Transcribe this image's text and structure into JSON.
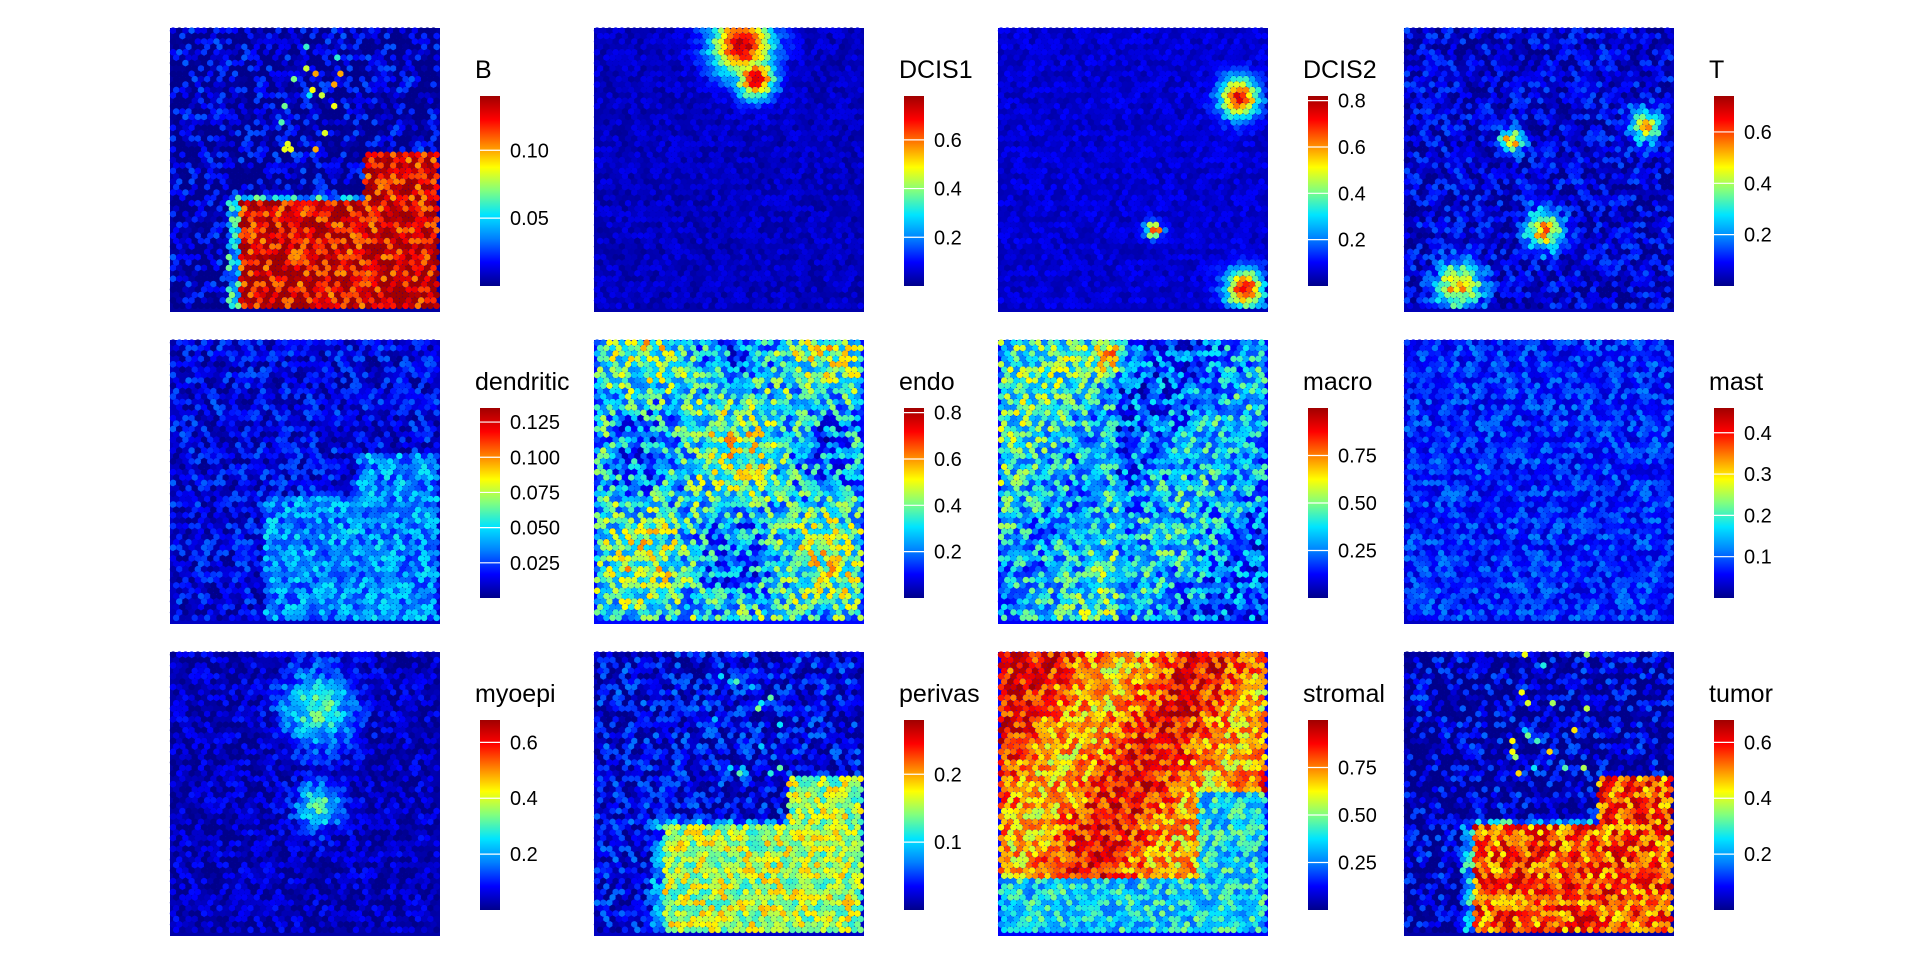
{
  "chart_data": {
    "type": "heatmap",
    "description_layout": "4x3 grid of spatial heatmaps",
    "colormap": [
      "#00008b",
      "#0000ff",
      "#0080ff",
      "#00e5ff",
      "#80ff80",
      "#ffff00",
      "#ff8000",
      "#ff0000",
      "#a00000"
    ],
    "panels": [
      {
        "title": "B",
        "scale_max": 0.14,
        "ticks": [
          0.05,
          0.1
        ],
        "tick_labels": [
          "0.05",
          "0.10"
        ],
        "pattern": "bottom-right",
        "base": 0.04,
        "peak": 0.9,
        "noise": 0.35
      },
      {
        "title": "DCIS1",
        "scale_max": 0.78,
        "ticks": [
          0.2,
          0.4,
          0.6
        ],
        "tick_labels": [
          "0.2",
          "0.4",
          "0.6"
        ],
        "pattern": "top-cluster",
        "base": 0.06,
        "peak": 0.95,
        "noise": 0.1
      },
      {
        "title": "DCIS2",
        "scale_max": 0.82,
        "ticks": [
          0.2,
          0.4,
          0.6,
          0.8
        ],
        "tick_labels": [
          "0.2",
          "0.4",
          "0.6",
          "0.8"
        ],
        "pattern": "corner-spots",
        "base": 0.08,
        "peak": 0.9,
        "noise": 0.1
      },
      {
        "title": "T",
        "scale_max": 0.74,
        "ticks": [
          0.2,
          0.4,
          0.6
        ],
        "tick_labels": [
          "0.2",
          "0.4",
          "0.6"
        ],
        "pattern": "scattered",
        "base": 0.08,
        "peak": 0.7,
        "noise": 0.25
      },
      {
        "title": "dendritic",
        "scale_max": 0.135,
        "ticks": [
          0.025,
          0.05,
          0.075,
          0.1,
          0.125
        ],
        "tick_labels": [
          "0.025",
          "0.050",
          "0.075",
          "0.100",
          "0.125"
        ],
        "pattern": "bottom-right-weak",
        "base": 0.1,
        "peak": 0.35,
        "noise": 0.25
      },
      {
        "title": "endo",
        "scale_max": 0.82,
        "ticks": [
          0.2,
          0.4,
          0.6,
          0.8
        ],
        "tick_labels": [
          "0.2",
          "0.4",
          "0.6",
          "0.8"
        ],
        "pattern": "diffuse",
        "base": 0.22,
        "peak": 0.55,
        "noise": 0.45
      },
      {
        "title": "macro",
        "scale_max": 1.0,
        "ticks": [
          0.25,
          0.5,
          0.75
        ],
        "tick_labels": [
          "0.25",
          "0.50",
          "0.75"
        ],
        "pattern": "diffuse-left",
        "base": 0.2,
        "peak": 0.45,
        "noise": 0.4
      },
      {
        "title": "mast",
        "scale_max": 0.46,
        "ticks": [
          0.1,
          0.2,
          0.3,
          0.4
        ],
        "tick_labels": [
          "0.1",
          "0.2",
          "0.3",
          "0.4"
        ],
        "pattern": "sparse",
        "base": 0.1,
        "peak": 0.4,
        "noise": 0.2
      },
      {
        "title": "myoepi",
        "scale_max": 0.68,
        "ticks": [
          0.2,
          0.4,
          0.6
        ],
        "tick_labels": [
          "0.2",
          "0.4",
          "0.6"
        ],
        "pattern": "top-middle",
        "base": 0.05,
        "peak": 0.55,
        "noise": 0.2
      },
      {
        "title": "perivas",
        "scale_max": 0.28,
        "ticks": [
          0.1,
          0.2
        ],
        "tick_labels": [
          "0.1",
          "0.2"
        ],
        "pattern": "bottom-right",
        "base": 0.1,
        "peak": 0.55,
        "noise": 0.3
      },
      {
        "title": "stromal",
        "scale_max": 1.0,
        "ticks": [
          0.25,
          0.5,
          0.75
        ],
        "tick_labels": [
          "0.25",
          "0.50",
          "0.75"
        ],
        "pattern": "stromal",
        "base": 0.2,
        "peak": 0.88,
        "noise": 0.3
      },
      {
        "title": "tumor",
        "scale_max": 0.68,
        "ticks": [
          0.2,
          0.4,
          0.6
        ],
        "tick_labels": [
          "0.2",
          "0.4",
          "0.6"
        ],
        "pattern": "bottom-right",
        "base": 0.05,
        "peak": 0.8,
        "noise": 0.35
      }
    ]
  }
}
